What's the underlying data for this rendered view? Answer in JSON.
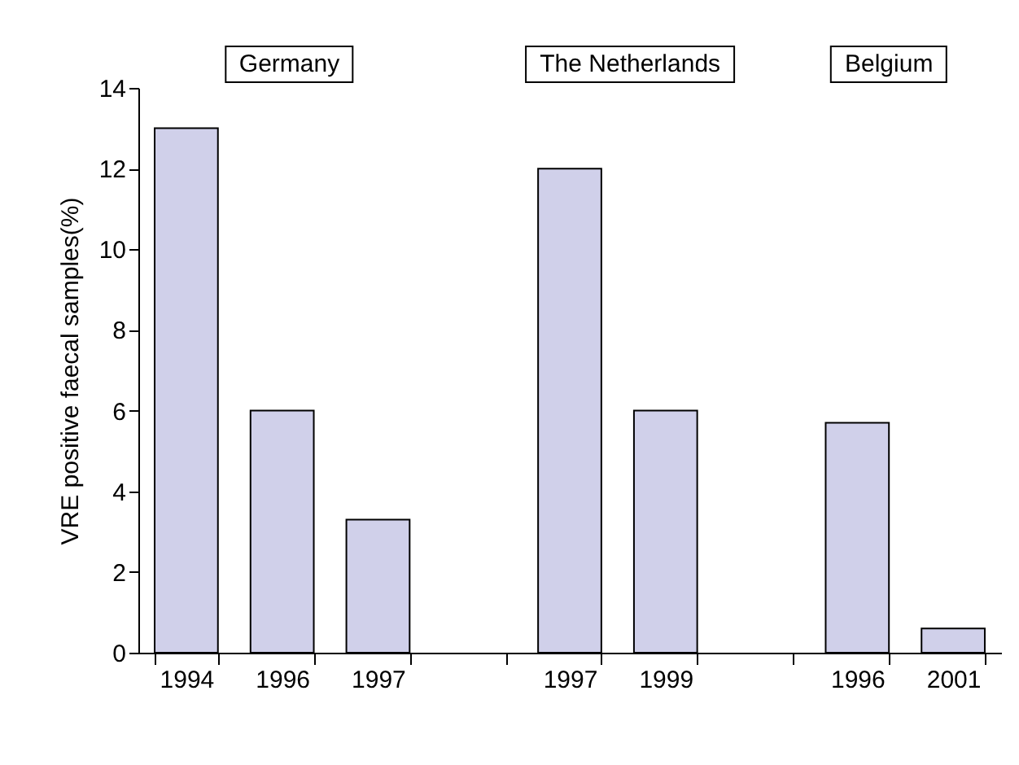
{
  "chart_data": {
    "type": "bar",
    "ylabel": "VRE positive faecal samples(%)",
    "categories": [
      "1994",
      "1996",
      "1997",
      null,
      "1997",
      "1999",
      null,
      "1996",
      "2001"
    ],
    "values": [
      13,
      6,
      3.3,
      null,
      12,
      6,
      null,
      5.7,
      0.6
    ],
    "color": "#d0d0ea",
    "ylim": [
      0,
      14
    ],
    "yticks": [
      0,
      2,
      4,
      6,
      8,
      10,
      12,
      14
    ],
    "grid": false,
    "annotations": [
      "Germany",
      "The Netherlands",
      "Belgium"
    ]
  }
}
